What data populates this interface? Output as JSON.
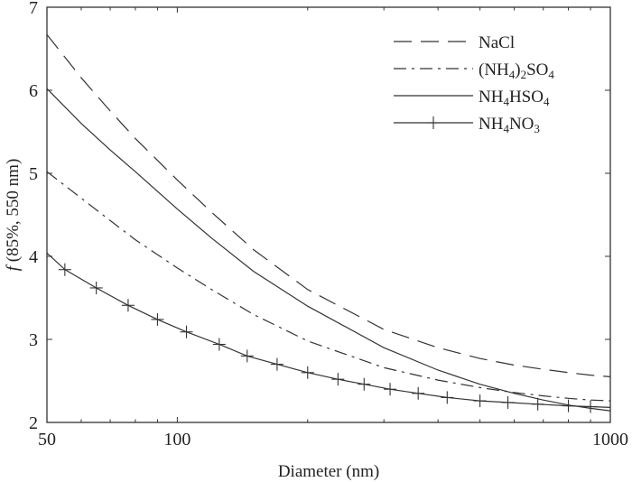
{
  "chart_data": {
    "type": "line",
    "title": "",
    "xlabel": "Diameter (nm)",
    "ylabel": "f (85%, 550 nm)",
    "ylabel_italic": "f",
    "ylabel_rest": " (85%, 550 nm)",
    "x_scale": "log",
    "xlim": [
      50,
      1000
    ],
    "ylim": [
      2,
      7
    ],
    "x_ticks": [
      50,
      100,
      1000
    ],
    "x_tick_labels": [
      "50",
      "100",
      "1000"
    ],
    "y_ticks": [
      2,
      3,
      4,
      5,
      6,
      7
    ],
    "y_tick_labels": [
      "2",
      "3",
      "4",
      "5",
      "6",
      "7"
    ],
    "grid": false,
    "legend_position": "top-right",
    "series": [
      {
        "name": "NaCl",
        "legend": [
          {
            "t": "NaCl"
          }
        ],
        "style": "dashed",
        "x": [
          50,
          60,
          70,
          80,
          100,
          120,
          150,
          200,
          300,
          400,
          500,
          600,
          700,
          800,
          900,
          1000
        ],
        "y": [
          6.67,
          6.15,
          5.75,
          5.42,
          4.92,
          4.53,
          4.08,
          3.6,
          3.12,
          2.9,
          2.77,
          2.69,
          2.64,
          2.6,
          2.57,
          2.55
        ]
      },
      {
        "name": "(NH4)2SO4",
        "legend": [
          {
            "t": "(NH"
          },
          {
            "t": "4",
            "sub": true
          },
          {
            "t": ")"
          },
          {
            "t": "2",
            "sub": true
          },
          {
            "t": "SO"
          },
          {
            "t": "4",
            "sub": true
          }
        ],
        "style": "dashdot",
        "x": [
          50,
          60,
          70,
          80,
          100,
          120,
          150,
          200,
          300,
          400,
          500,
          600,
          700,
          800,
          900,
          1000
        ],
        "y": [
          5.02,
          4.7,
          4.43,
          4.2,
          3.86,
          3.6,
          3.3,
          2.98,
          2.66,
          2.51,
          2.42,
          2.36,
          2.32,
          2.29,
          2.27,
          2.26
        ]
      },
      {
        "name": "NH4HSO4",
        "legend": [
          {
            "t": "NH"
          },
          {
            "t": "4",
            "sub": true
          },
          {
            "t": "HSO"
          },
          {
            "t": "4",
            "sub": true
          }
        ],
        "style": "solid",
        "x": [
          50,
          60,
          70,
          80,
          100,
          120,
          150,
          200,
          300,
          400,
          500,
          600,
          700,
          800,
          900,
          1000
        ],
        "y": [
          6.02,
          5.6,
          5.28,
          5.02,
          4.57,
          4.22,
          3.82,
          3.4,
          2.9,
          2.63,
          2.46,
          2.35,
          2.27,
          2.21,
          2.17,
          2.14
        ]
      },
      {
        "name": "NH4NO3",
        "legend": [
          {
            "t": "NH"
          },
          {
            "t": "4",
            "sub": true
          },
          {
            "t": "NO"
          },
          {
            "t": "3",
            "sub": true
          }
        ],
        "style": "solid-plus",
        "x": [
          50,
          55,
          65,
          77,
          90,
          105,
          125,
          145,
          170,
          200,
          235,
          270,
          310,
          360,
          420,
          500,
          580,
          680,
          800,
          900,
          1000
        ],
        "y": [
          4.04,
          3.84,
          3.62,
          3.41,
          3.24,
          3.09,
          2.94,
          2.8,
          2.7,
          2.6,
          2.52,
          2.46,
          2.4,
          2.35,
          2.3,
          2.26,
          2.24,
          2.22,
          2.2,
          2.19,
          2.18
        ]
      }
    ]
  }
}
